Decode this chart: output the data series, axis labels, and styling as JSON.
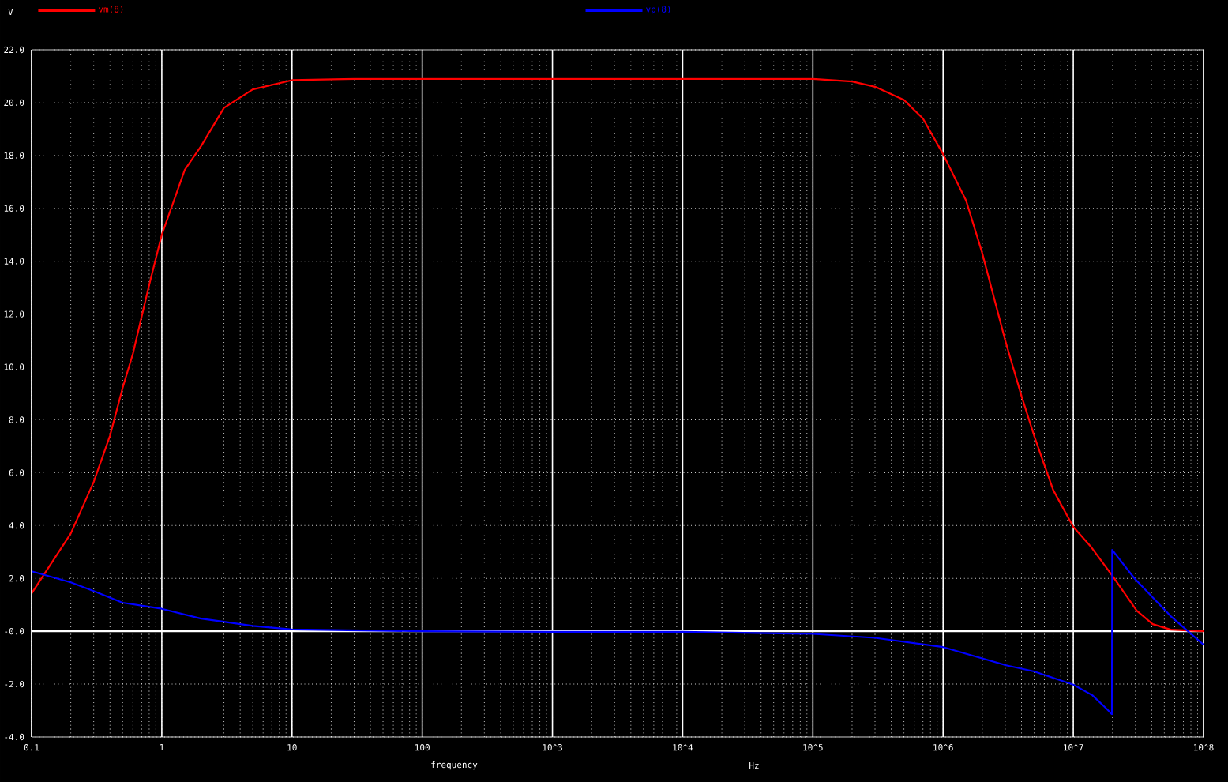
{
  "chart_data": {
    "type": "line",
    "ylabel": "V",
    "xlabel": "frequency",
    "annotations": [
      "Hz"
    ],
    "log": "x",
    "grid": true,
    "legend": "top",
    "marker": "none",
    "line_style": "solid",
    "xlim": [
      0.1,
      100000000
    ],
    "ylim": [
      -4,
      22
    ],
    "xticks": [
      0.1,
      1,
      10,
      100,
      {
        "value": 1000,
        "label": "10^3"
      },
      {
        "value": 10000,
        "label": "10^4"
      },
      {
        "value": 100000,
        "label": "10^5"
      },
      {
        "value": 1000000,
        "label": "10^6"
      },
      {
        "value": 10000000,
        "label": "10^7"
      },
      {
        "value": 100000000,
        "label": "10^8"
      }
    ],
    "yticks": [
      {
        "value": -4,
        "label": "-4.0"
      },
      {
        "value": -2,
        "label": "-2.0"
      },
      {
        "value": 0,
        "label": "-0.0"
      },
      {
        "value": 2,
        "label": "2.0"
      },
      {
        "value": 4,
        "label": "4.0"
      },
      {
        "value": 6,
        "label": "6.0"
      },
      {
        "value": 8,
        "label": "8.0"
      },
      {
        "value": 10,
        "label": "10.0"
      },
      {
        "value": 12,
        "label": "12.0"
      },
      {
        "value": 14,
        "label": "14.0"
      },
      {
        "value": 16,
        "label": "16.0"
      },
      {
        "value": 18,
        "label": "18.0"
      },
      {
        "value": 20,
        "label": "20.0"
      },
      {
        "value": 22,
        "label": "22.0"
      }
    ],
    "ref_lines": [
      {
        "axis": "y",
        "value": 0,
        "color": "#ffffff",
        "line_style": "solid"
      }
    ],
    "series": [
      {
        "name": "vm(8)",
        "color": "#ff0000",
        "x": [
          0.1,
          0.2,
          0.3,
          0.4,
          0.5,
          0.6,
          0.7,
          0.8,
          1,
          1.5,
          2,
          3,
          5,
          10,
          30,
          100,
          1000,
          10000,
          100000,
          200000,
          300000,
          500000,
          700000,
          1000000,
          1500000,
          2000000,
          3000000,
          4000000,
          5000000,
          7000000,
          10000000,
          13800000,
          20200000,
          30700000,
          40700000,
          56000000,
          100000000
        ],
        "values": [
          1.43,
          3.7,
          5.65,
          7.4,
          9.2,
          10.5,
          11.9,
          13.1,
          15.0,
          17.45,
          18.35,
          19.8,
          20.5,
          20.85,
          20.9,
          20.9,
          20.9,
          20.9,
          20.9,
          20.8,
          20.6,
          20.1,
          19.4,
          18.05,
          16.3,
          14.3,
          11.0,
          8.9,
          7.4,
          5.35,
          3.95,
          3.17,
          2.06,
          0.78,
          0.27,
          0.06,
          0.0
        ]
      },
      {
        "name": "vp(8)",
        "color": "#0000ff",
        "x": [
          0.1,
          0.2,
          0.3,
          0.5,
          1,
          2,
          3,
          5,
          10,
          100,
          1000,
          10000,
          100000,
          300000,
          1000000,
          3000000,
          5000000,
          10000000,
          14000000,
          18000000,
          19800000,
          19900000,
          29500000,
          56000000,
          100000000
        ],
        "values": [
          2.27,
          1.85,
          1.52,
          1.08,
          0.85,
          0.48,
          0.36,
          0.2,
          0.07,
          0.0,
          -0.02,
          -0.02,
          -0.1,
          -0.25,
          -0.6,
          -1.28,
          -1.52,
          -2.02,
          -2.42,
          -2.93,
          -3.14,
          3.08,
          2.0,
          0.57,
          -0.51
        ]
      }
    ]
  }
}
